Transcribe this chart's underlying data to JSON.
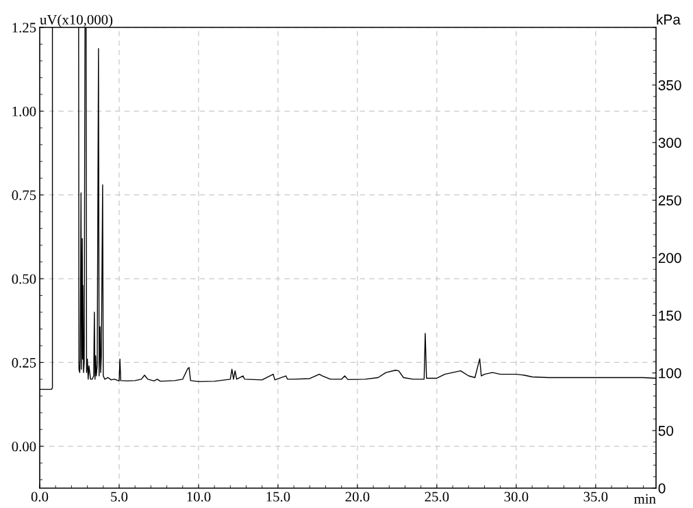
{
  "chart_data": {
    "type": "line",
    "xlabel": "min",
    "ylabel": "uV(x10,000)",
    "y2label": "kPa",
    "x": [
      0,
      0.75,
      0.8,
      0.8,
      1.5,
      2.45,
      2.47,
      2.52,
      2.55,
      2.6,
      2.63,
      2.68,
      2.7,
      2.72,
      2.76,
      2.8,
      2.85,
      2.88,
      2.92,
      2.95,
      3.0,
      3.05,
      3.1,
      3.2,
      3.3,
      3.4,
      3.44,
      3.48,
      3.52,
      3.56,
      3.62,
      3.7,
      3.74,
      3.8,
      3.84,
      3.88,
      3.96,
      4.0,
      4.1,
      4.3,
      4.5,
      4.7,
      5.0,
      5.05,
      5.1,
      5.5,
      6.0,
      6.4,
      6.6,
      6.8,
      7.2,
      7.4,
      7.6,
      8.5,
      9.0,
      9.3,
      9.4,
      9.5,
      10.0,
      11.0,
      12.0,
      12.1,
      12.2,
      12.3,
      12.4,
      12.8,
      12.9,
      14.0,
      14.7,
      14.8,
      15.5,
      15.6,
      16.0,
      17.0,
      17.6,
      17.8,
      18.3,
      19.0,
      19.2,
      19.4,
      20.5,
      21.3,
      21.8,
      22.4,
      22.6,
      22.9,
      23.5,
      24.2,
      24.27,
      24.35,
      25.0,
      25.5,
      26.0,
      26.5,
      27.0,
      27.4,
      27.7,
      27.8,
      28.0,
      28.5,
      29.0,
      29.5,
      30.0,
      30.5,
      31.0,
      32.0,
      35.0,
      38.0,
      38.8
    ],
    "series": [
      {
        "color": "#000000",
        "values": [
          0.17,
          0.17,
          0.175,
          1.25,
          null,
          1.25,
          0.23,
          0.22,
          0.26,
          0.756,
          0.23,
          0.62,
          0.26,
          0.48,
          0.22,
          0.25,
          1.25,
          null,
          1.25,
          0.22,
          0.26,
          0.2,
          0.24,
          0.2,
          0.2,
          0.21,
          0.4,
          0.2,
          0.27,
          0.21,
          0.24,
          1.187,
          0.21,
          0.357,
          0.22,
          0.27,
          0.78,
          0.21,
          0.2,
          0.205,
          0.198,
          0.2,
          0.195,
          0.26,
          0.196,
          0.195,
          0.196,
          0.2,
          0.212,
          0.2,
          0.195,
          0.2,
          0.194,
          0.196,
          0.2,
          0.23,
          0.235,
          0.196,
          0.193,
          0.194,
          0.2,
          0.23,
          0.2,
          0.225,
          0.2,
          0.21,
          0.2,
          0.198,
          0.215,
          0.198,
          0.21,
          0.2,
          0.2,
          0.202,
          0.215,
          0.21,
          0.2,
          0.2,
          0.21,
          0.199,
          0.2,
          0.205,
          0.22,
          0.227,
          0.225,
          0.205,
          0.2,
          0.2,
          0.337,
          0.203,
          0.203,
          0.215,
          0.22,
          0.225,
          0.21,
          0.205,
          0.261,
          0.21,
          0.215,
          0.22,
          0.215,
          0.215,
          0.215,
          0.212,
          0.207,
          0.205,
          0.205,
          0.205,
          0.203
        ]
      }
    ],
    "xlim": [
      0,
      38.8
    ],
    "xticks": [
      {
        "value": 0,
        "label": "0.0"
      },
      {
        "value": 5,
        "label": "5.0"
      },
      {
        "value": 10,
        "label": "10.0"
      },
      {
        "value": 15,
        "label": "15.0"
      },
      {
        "value": 20,
        "label": "20.0"
      },
      {
        "value": 25,
        "label": "25.0"
      },
      {
        "value": 30,
        "label": "30.0"
      },
      {
        "value": 35,
        "label": "35.0"
      }
    ],
    "ylim": [
      -0.125,
      1.25
    ],
    "yticks": [
      {
        "value": 0,
        "label": "0.00"
      },
      {
        "value": 0.25,
        "label": "0.25"
      },
      {
        "value": 0.5,
        "label": "0.50"
      },
      {
        "value": 0.75,
        "label": "0.75"
      },
      {
        "value": 1.0,
        "label": "1.00"
      },
      {
        "value": 1.25,
        "label": "1.25"
      }
    ],
    "y2lim": [
      0,
      400
    ],
    "y2ticks": [
      0,
      50,
      100,
      150,
      200,
      250,
      300,
      350
    ],
    "grid": true,
    "legend": false,
    "marker": "none",
    "line_style": "solid"
  }
}
